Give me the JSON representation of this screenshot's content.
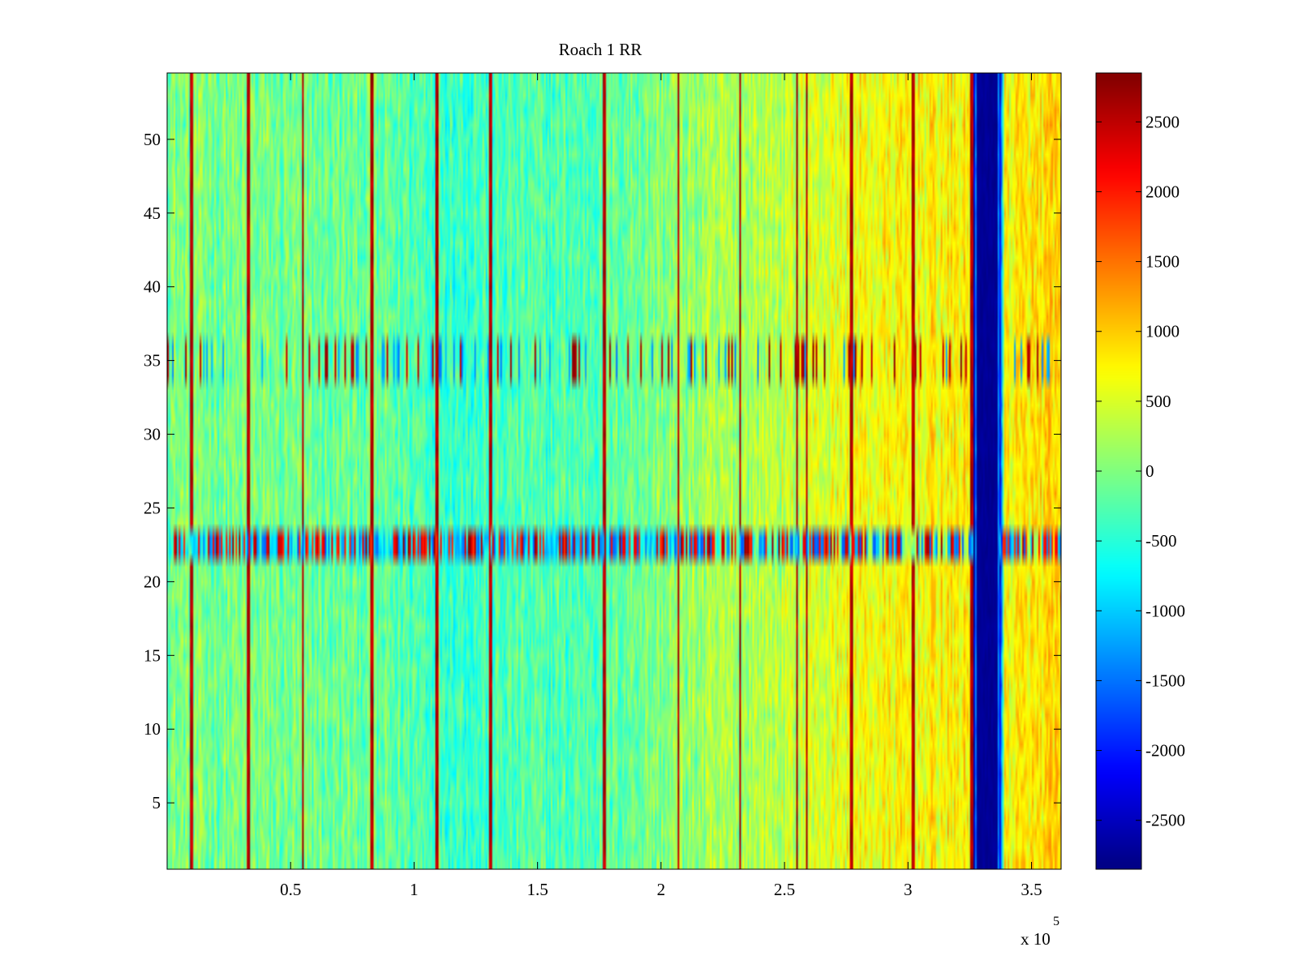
{
  "chart_data": {
    "type": "heatmap",
    "title": "Roach 1 RR",
    "xlabel": "",
    "ylabel": "",
    "x_exponent_label": "x 10",
    "x_exponent_power": "5",
    "xlim": [
      0,
      3.62
    ],
    "ylim": [
      0.5,
      54.5
    ],
    "x_ticks": [
      0.5,
      1,
      1.5,
      2,
      2.5,
      3,
      3.5
    ],
    "x_tick_labels": [
      "0.5",
      "1",
      "1.5",
      "2",
      "2.5",
      "3",
      "3.5"
    ],
    "y_ticks": [
      5,
      10,
      15,
      20,
      25,
      30,
      35,
      40,
      45,
      50
    ],
    "y_tick_labels": [
      "5",
      "10",
      "15",
      "20",
      "25",
      "30",
      "35",
      "40",
      "45",
      "50"
    ],
    "rows": 54,
    "x_units_scale": 100000,
    "colormap": "jet",
    "clim": [
      -2850,
      2850
    ],
    "colorbar_ticks": [
      2500,
      2000,
      1500,
      1000,
      500,
      0,
      -500,
      -1000,
      -1500,
      -2000,
      -2500
    ],
    "colorbar_tick_labels": [
      "2500",
      "2000",
      "1500",
      "1000",
      "500",
      "0",
      "-500",
      "-1000",
      "-1500",
      "-2000",
      "-2500"
    ],
    "baseline_trend": [
      {
        "x": 0.0,
        "value": 0
      },
      {
        "x": 0.8,
        "value": -150
      },
      {
        "x": 1.2,
        "value": -350
      },
      {
        "x": 1.7,
        "value": -250
      },
      {
        "x": 2.1,
        "value": 100
      },
      {
        "x": 2.5,
        "value": 350
      },
      {
        "x": 2.8,
        "value": 650
      },
      {
        "x": 3.25,
        "value": 750
      },
      {
        "x": 3.27,
        "value": -2800
      },
      {
        "x": 3.37,
        "value": -2800
      },
      {
        "x": 3.39,
        "value": 700
      },
      {
        "x": 3.62,
        "value": 900
      }
    ],
    "vertical_streaks_x": [
      0.1,
      0.33,
      0.55,
      0.83,
      1.09,
      1.31,
      1.77,
      2.07,
      2.32,
      2.55,
      2.59,
      2.77,
      3.02,
      3.26
    ],
    "streak_value": 2800,
    "low_block": {
      "x_start": 3.27,
      "x_end": 3.37,
      "value": -2800
    },
    "anomaly_rows": [
      {
        "row_min": 21.5,
        "row_max": 23.5,
        "description_value_range": [
          -1800,
          2800
        ]
      },
      {
        "row_min": 34,
        "row_max": 36,
        "description_value_range": [
          -1500,
          2800
        ]
      }
    ]
  }
}
